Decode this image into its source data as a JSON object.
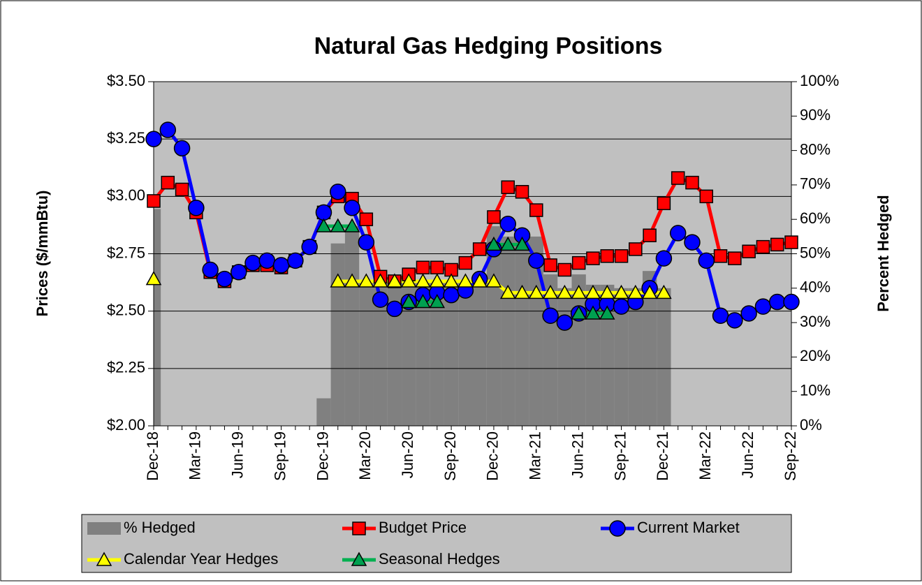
{
  "chart_data": {
    "type": "combo",
    "title": "Natural Gas Hedging Positions",
    "y_label": "Prices ($/mmBtu)",
    "y2_label": "Percent Hedged",
    "categories": [
      "Dec-18",
      null,
      null,
      "Mar-19",
      null,
      null,
      "Jun-19",
      null,
      null,
      "Sep-19",
      null,
      null,
      "Dec-19",
      null,
      null,
      "Mar-20",
      null,
      null,
      "Jun-20",
      null,
      null,
      "Sep-20",
      null,
      null,
      "Dec-20",
      null,
      null,
      "Mar-21",
      null,
      null,
      "Jun-21",
      null,
      null,
      "Sep-21",
      null,
      null,
      "Dec-21",
      null,
      null,
      "Mar-22",
      null,
      null,
      "Jun-22",
      null,
      null,
      "Sep-22"
    ],
    "ylim": [
      2.0,
      3.5
    ],
    "yticks": [
      {
        "value": 2.0,
        "label": "$2.00"
      },
      {
        "value": 2.25,
        "label": "$2.25"
      },
      {
        "value": 2.5,
        "label": "$2.50"
      },
      {
        "value": 2.75,
        "label": "$2.75"
      },
      {
        "value": 3.0,
        "label": "$3.00"
      },
      {
        "value": 3.25,
        "label": "$3.25"
      },
      {
        "value": 3.5,
        "label": "$3.50"
      }
    ],
    "y2lim": [
      0,
      100
    ],
    "y2ticks": [
      {
        "value": 0,
        "label": "0%"
      },
      {
        "value": 10,
        "label": "10%"
      },
      {
        "value": 20,
        "label": "20%"
      },
      {
        "value": 30,
        "label": "30%"
      },
      {
        "value": 40,
        "label": "40%"
      },
      {
        "value": 50,
        "label": "50%"
      },
      {
        "value": 60,
        "label": "60%"
      },
      {
        "value": 70,
        "label": "70%"
      },
      {
        "value": 80,
        "label": "80%"
      },
      {
        "value": 90,
        "label": "90%"
      },
      {
        "value": 100,
        "label": "100%"
      }
    ],
    "grid": true,
    "series": [
      {
        "name": "% Hedged",
        "type": "bar",
        "axis": "y2",
        "color": "#808080",
        "values": [
          63,
          0,
          0,
          0,
          0,
          0,
          0,
          0,
          0,
          0,
          0,
          0,
          8,
          53,
          58,
          42,
          42,
          42,
          42,
          42,
          42,
          42,
          42,
          42,
          58,
          55,
          55,
          55,
          44,
          40,
          44,
          41,
          41,
          40,
          40,
          45,
          40,
          0,
          0,
          0,
          0,
          0,
          0,
          0,
          0,
          0
        ]
      },
      {
        "name": "Budget Price",
        "type": "line",
        "color": "#ff0000",
        "marker": "square",
        "marker_color": "#ff0000",
        "values": [
          2.98,
          3.06,
          3.03,
          2.93,
          2.67,
          2.63,
          2.67,
          2.7,
          2.7,
          2.69,
          2.72,
          2.78,
          2.93,
          3.0,
          2.99,
          2.9,
          2.65,
          2.63,
          2.66,
          2.69,
          2.69,
          2.68,
          2.71,
          2.77,
          2.91,
          3.04,
          3.02,
          2.94,
          2.7,
          2.68,
          2.71,
          2.73,
          2.74,
          2.74,
          2.77,
          2.83,
          2.97,
          3.08,
          3.06,
          3.0,
          2.74,
          2.73,
          2.76,
          2.78,
          2.79,
          2.8
        ]
      },
      {
        "name": "Current Market",
        "type": "line",
        "color": "#0000ff",
        "marker": "circle",
        "marker_color": "#0000ff",
        "values": [
          3.25,
          3.29,
          3.21,
          2.95,
          2.68,
          2.64,
          2.67,
          2.71,
          2.72,
          2.7,
          2.72,
          2.78,
          2.93,
          3.02,
          2.95,
          2.8,
          2.55,
          2.51,
          2.54,
          2.57,
          2.58,
          2.57,
          2.59,
          2.64,
          2.77,
          2.88,
          2.83,
          2.72,
          2.48,
          2.45,
          2.49,
          2.53,
          2.53,
          2.52,
          2.54,
          2.6,
          2.73,
          2.84,
          2.8,
          2.72,
          2.48,
          2.46,
          2.49,
          2.52,
          2.54,
          2.54
        ]
      },
      {
        "name": "Calendar Year Hedges",
        "type": "line",
        "color": "#ffff00",
        "marker": "triangle",
        "marker_color": "#ffff00",
        "values": [
          2.64,
          null,
          null,
          null,
          null,
          null,
          null,
          null,
          null,
          null,
          null,
          null,
          null,
          2.63,
          2.63,
          2.63,
          2.63,
          2.63,
          2.63,
          2.63,
          2.63,
          2.63,
          2.63,
          2.63,
          2.63,
          2.58,
          2.58,
          2.58,
          2.58,
          2.58,
          2.58,
          2.58,
          2.58,
          2.58,
          2.58,
          2.58,
          2.58,
          null,
          null,
          null,
          null,
          null,
          null,
          null,
          null,
          null
        ]
      },
      {
        "name": "Seasonal Hedges",
        "type": "line",
        "color": "#00b050",
        "marker": "triangle",
        "marker_color": "#00a050",
        "values": [
          null,
          null,
          null,
          null,
          null,
          null,
          null,
          null,
          null,
          null,
          null,
          null,
          2.87,
          2.87,
          2.87,
          null,
          null,
          null,
          2.54,
          2.54,
          2.54,
          null,
          null,
          null,
          2.79,
          2.79,
          2.79,
          null,
          null,
          null,
          2.49,
          2.49,
          2.49,
          null,
          null,
          null,
          null,
          null,
          null,
          null,
          null,
          null,
          null,
          null,
          null,
          null
        ]
      }
    ]
  }
}
